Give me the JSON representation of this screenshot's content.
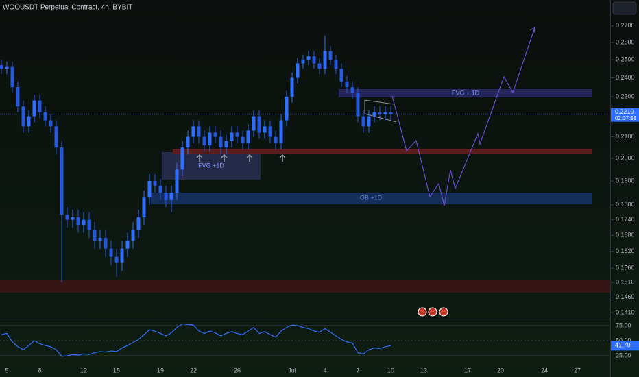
{
  "chart_data": [
    {
      "type": "candlestick",
      "title": "WOOUSDT Perpetual Contract, 4h, BYBIT",
      "log_scale": true,
      "up_color": "#2f6fff",
      "down_color": "#2458e0",
      "annotations": [
        "FVG + 1D",
        "FVG +1D",
        "OB +1D"
      ],
      "last_price_label": "0.2210",
      "countdown": "02:07:58",
      "xlim": [
        4.375,
        59.875
      ],
      "xticks": [
        5,
        8,
        12,
        15,
        19,
        22,
        26,
        {
          "value": 31,
          "label": "Jul"
        },
        {
          "value": 34,
          "label": "4"
        },
        {
          "value": 37,
          "label": "7"
        },
        {
          "value": 40,
          "label": "10"
        },
        {
          "value": 43,
          "label": "13"
        },
        {
          "value": 47,
          "label": "17"
        },
        {
          "value": 50,
          "label": "20"
        },
        {
          "value": 54,
          "label": "24"
        },
        {
          "value": 57,
          "label": "27"
        }
      ],
      "ylim": [
        0.1395,
        0.2854
      ],
      "yticks": [
        {
          "value": 0.27,
          "label": "0.2700"
        },
        {
          "value": 0.26,
          "label": "0.2600"
        },
        {
          "value": 0.25,
          "label": "0.2500"
        },
        {
          "value": 0.24,
          "label": "0.2400"
        },
        {
          "value": 0.23,
          "label": "0.2300"
        },
        {
          "value": 0.21,
          "label": "0.2100"
        },
        {
          "value": 0.2,
          "label": "0.2000"
        },
        {
          "value": 0.19,
          "label": "0.1900"
        },
        {
          "value": 0.18,
          "label": "0.1800"
        },
        {
          "value": 0.174,
          "label": "0.1740"
        },
        {
          "value": 0.168,
          "label": "0.1680"
        },
        {
          "value": 0.162,
          "label": "0.1620"
        },
        {
          "value": 0.156,
          "label": "0.1560"
        },
        {
          "value": 0.151,
          "label": "0.1510"
        },
        {
          "value": 0.146,
          "label": "0.1460"
        },
        {
          "value": 0.141,
          "label": "0.1410"
        }
      ],
      "x": [
        4.5,
        5,
        5.5,
        6,
        6.5,
        7,
        7.5,
        8,
        8.5,
        9,
        9.5,
        10,
        10.5,
        11,
        11.5,
        12,
        12.5,
        13,
        13.5,
        14,
        14.5,
        15,
        15.5,
        16,
        16.5,
        17,
        17.5,
        18,
        18.5,
        19,
        19.5,
        20,
        20.5,
        21,
        21.5,
        22,
        22.5,
        23,
        23.5,
        24,
        24.5,
        25,
        25.5,
        26,
        26.5,
        27,
        27.5,
        28,
        28.5,
        29,
        29.5,
        30,
        30.5,
        31,
        31.5,
        32,
        32.5,
        33,
        33.5,
        34,
        34.5,
        35,
        35.5,
        36,
        36.5,
        37,
        37.5,
        38,
        38.5,
        39,
        39.5,
        40
      ],
      "open": [
        0.247,
        0.245,
        0.246,
        0.235,
        0.225,
        0.215,
        0.22,
        0.228,
        0.222,
        0.218,
        0.215,
        0.205,
        0.176,
        0.174,
        0.175,
        0.172,
        0.174,
        0.17,
        0.166,
        0.167,
        0.163,
        0.16,
        0.158,
        0.163,
        0.166,
        0.17,
        0.175,
        0.183,
        0.19,
        0.188,
        0.185,
        0.182,
        0.185,
        0.195,
        0.205,
        0.21,
        0.215,
        0.21,
        0.206,
        0.212,
        0.21,
        0.205,
        0.208,
        0.212,
        0.21,
        0.207,
        0.213,
        0.22,
        0.212,
        0.215,
        0.21,
        0.207,
        0.218,
        0.23,
        0.24,
        0.248,
        0.25,
        0.252,
        0.248,
        0.245,
        0.255,
        0.25,
        0.245,
        0.238,
        0.235,
        0.232,
        0.22,
        0.215,
        0.22,
        0.222,
        0.221,
        0.222
      ],
      "high": [
        0.25,
        0.249,
        0.249,
        0.238,
        0.228,
        0.223,
        0.231,
        0.231,
        0.225,
        0.221,
        0.218,
        0.208,
        0.179,
        0.178,
        0.178,
        0.177,
        0.177,
        0.173,
        0.17,
        0.17,
        0.166,
        0.163,
        0.166,
        0.169,
        0.173,
        0.178,
        0.186,
        0.193,
        0.193,
        0.191,
        0.188,
        0.188,
        0.198,
        0.208,
        0.213,
        0.218,
        0.218,
        0.213,
        0.215,
        0.215,
        0.213,
        0.211,
        0.215,
        0.215,
        0.213,
        0.216,
        0.223,
        0.223,
        0.218,
        0.218,
        0.213,
        0.221,
        0.233,
        0.243,
        0.251,
        0.253,
        0.255,
        0.255,
        0.251,
        0.264,
        0.258,
        0.253,
        0.248,
        0.241,
        0.238,
        0.235,
        0.223,
        0.223,
        0.225,
        0.225,
        0.225,
        0.225
      ],
      "low": [
        0.242,
        0.242,
        0.232,
        0.222,
        0.212,
        0.212,
        0.217,
        0.219,
        0.215,
        0.212,
        0.202,
        0.151,
        0.171,
        0.171,
        0.169,
        0.169,
        0.167,
        0.163,
        0.163,
        0.16,
        0.157,
        0.153,
        0.155,
        0.16,
        0.163,
        0.167,
        0.172,
        0.18,
        0.185,
        0.182,
        0.179,
        0.177,
        0.182,
        0.192,
        0.202,
        0.207,
        0.207,
        0.203,
        0.203,
        0.207,
        0.202,
        0.202,
        0.205,
        0.207,
        0.204,
        0.204,
        0.21,
        0.209,
        0.209,
        0.207,
        0.204,
        0.204,
        0.215,
        0.227,
        0.237,
        0.245,
        0.247,
        0.245,
        0.242,
        0.242,
        0.247,
        0.242,
        0.235,
        0.232,
        0.229,
        0.217,
        0.212,
        0.212,
        0.217,
        0.218,
        0.218,
        0.218
      ],
      "close": [
        0.245,
        0.246,
        0.235,
        0.225,
        0.215,
        0.22,
        0.228,
        0.222,
        0.218,
        0.215,
        0.205,
        0.176,
        0.174,
        0.175,
        0.172,
        0.174,
        0.17,
        0.166,
        0.167,
        0.163,
        0.16,
        0.158,
        0.163,
        0.166,
        0.17,
        0.175,
        0.183,
        0.19,
        0.188,
        0.185,
        0.182,
        0.185,
        0.195,
        0.205,
        0.21,
        0.215,
        0.21,
        0.206,
        0.212,
        0.21,
        0.205,
        0.208,
        0.212,
        0.21,
        0.207,
        0.213,
        0.22,
        0.212,
        0.215,
        0.21,
        0.207,
        0.218,
        0.23,
        0.24,
        0.248,
        0.25,
        0.252,
        0.248,
        0.245,
        0.255,
        0.25,
        0.245,
        0.238,
        0.235,
        0.232,
        0.22,
        0.215,
        0.22,
        0.222,
        0.221,
        0.222,
        0.221
      ]
    },
    {
      "type": "line",
      "color": "#2f6fff",
      "last_label": "41.70",
      "ylim": [
        14.8,
        85.2
      ],
      "yticks": [
        {
          "value": 75,
          "label": "75.00"
        },
        {
          "value": 50,
          "label": "50.00"
        },
        {
          "value": 25,
          "label": "25.00"
        }
      ],
      "x": [
        4.5,
        5,
        5.5,
        6,
        6.5,
        7,
        7.5,
        8,
        8.5,
        9,
        9.5,
        10,
        10.5,
        11,
        11.5,
        12,
        12.5,
        13,
        13.5,
        14,
        14.5,
        15,
        15.5,
        16,
        16.5,
        17,
        17.5,
        18,
        18.5,
        19,
        19.5,
        20,
        20.5,
        21,
        21.5,
        22,
        22.5,
        23,
        23.5,
        24,
        24.5,
        25,
        25.5,
        26,
        26.5,
        27,
        27.5,
        28,
        28.5,
        29,
        29.5,
        30,
        30.5,
        31,
        31.5,
        32,
        32.5,
        33,
        33.5,
        34,
        34.5,
        35,
        35.5,
        36,
        36.5,
        37,
        37.5,
        38,
        38.5,
        39,
        39.5,
        40
      ],
      "values": [
        60,
        62,
        48,
        40,
        35,
        42,
        50,
        45,
        42,
        40,
        35,
        24,
        25,
        27,
        26,
        28,
        27,
        30,
        32,
        31,
        33,
        32,
        38,
        42,
        47,
        52,
        60,
        68,
        66,
        62,
        58,
        63,
        72,
        78,
        77,
        76,
        66,
        62,
        66,
        63,
        58,
        62,
        65,
        62,
        60,
        66,
        72,
        62,
        65,
        60,
        56,
        66,
        72,
        76,
        75,
        72,
        70,
        66,
        64,
        70,
        64,
        58,
        52,
        48,
        46,
        30,
        28,
        35,
        38,
        37,
        40,
        41.7
      ]
    }
  ]
}
